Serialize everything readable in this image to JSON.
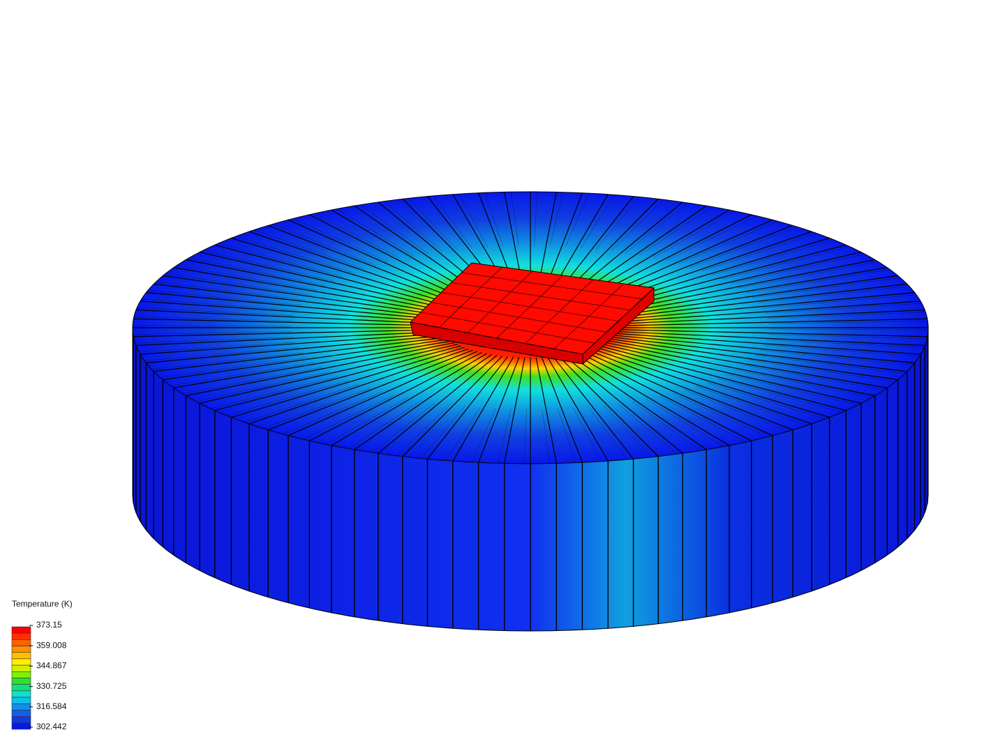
{
  "legend": {
    "title": "Temperature (K)",
    "ticks": [
      373.15,
      359.008,
      344.867,
      330.725,
      316.584,
      302.442
    ]
  }
}
